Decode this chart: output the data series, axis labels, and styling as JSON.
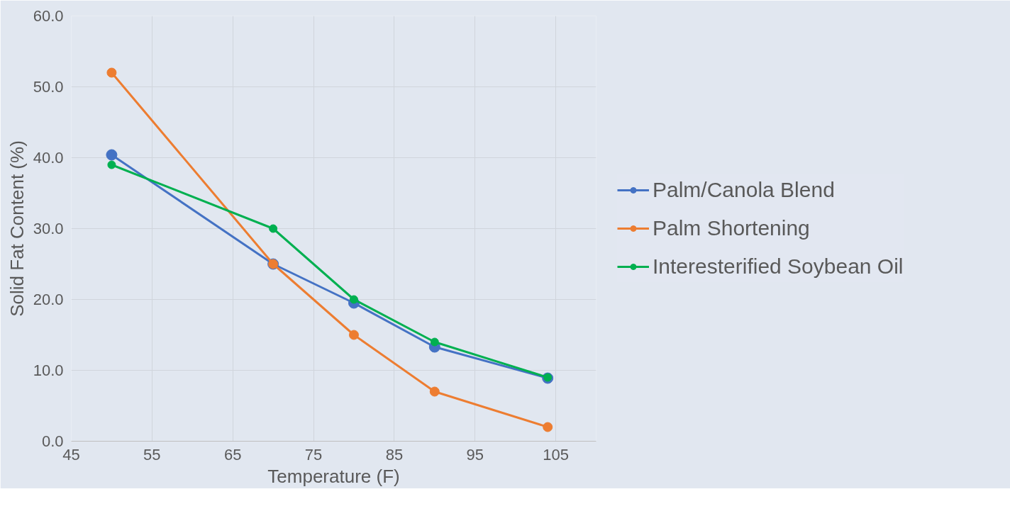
{
  "chart_data": {
    "type": "line",
    "xlabel": "Temperature (F)",
    "ylabel": "Solid Fat Content (%)",
    "x": [
      50,
      70,
      80,
      90,
      104
    ],
    "series": [
      {
        "name": "Palm/Canola Blend",
        "color": "#4472c4",
        "values": [
          40.4,
          25,
          19.5,
          13.3,
          8.9
        ]
      },
      {
        "name": "Palm Shortening",
        "color": "#ed7d31",
        "values": [
          52,
          25,
          15,
          7,
          2
        ]
      },
      {
        "name": "Interesterified Soybean Oil",
        "color": "#00b050",
        "values": [
          39,
          30,
          20,
          14,
          9
        ]
      }
    ],
    "xlim": [
      45,
      110
    ],
    "xticks": [
      45,
      55,
      65,
      75,
      85,
      95,
      105
    ],
    "ylim": [
      0,
      60
    ],
    "yticks": [
      {
        "value": 0,
        "label": "0.0"
      },
      {
        "value": 10,
        "label": "10.0"
      },
      {
        "value": 20,
        "label": "20.0"
      },
      {
        "value": 30,
        "label": "30.0"
      },
      {
        "value": 40,
        "label": "40.0"
      },
      {
        "value": 50,
        "label": "50.0"
      },
      {
        "value": 60,
        "label": "60.0"
      }
    ],
    "grid": true,
    "legend": "right",
    "marker": "circle",
    "line_style": "solid"
  }
}
